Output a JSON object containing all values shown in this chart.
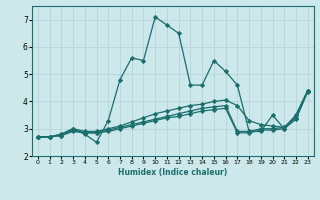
{
  "xlabel": "Humidex (Indice chaleur)",
  "background_color": "#cce8ea",
  "grid_color": "#b0d0d4",
  "line_color": "#1a6e6e",
  "xlim": [
    -0.5,
    23.5
  ],
  "ylim": [
    2.0,
    7.5
  ],
  "yticks": [
    2,
    3,
    4,
    5,
    6,
    7
  ],
  "xticks": [
    0,
    1,
    2,
    3,
    4,
    5,
    6,
    7,
    8,
    9,
    10,
    11,
    12,
    13,
    14,
    15,
    16,
    17,
    18,
    19,
    20,
    21,
    22,
    23
  ],
  "series": [
    {
      "x": [
        0,
        1,
        2,
        3,
        4,
        5,
        6,
        7,
        8,
        9,
        10,
        11,
        12,
        13,
        14,
        15,
        16,
        17,
        18,
        19,
        20,
        21,
        22,
        23
      ],
      "y": [
        2.7,
        2.7,
        2.8,
        3.0,
        2.8,
        2.5,
        3.3,
        4.8,
        5.6,
        5.5,
        7.1,
        6.8,
        6.5,
        4.6,
        4.6,
        5.5,
        5.1,
        4.6,
        2.9,
        2.9,
        3.5,
        3.0,
        3.5,
        4.4
      ]
    },
    {
      "x": [
        0,
        1,
        2,
        3,
        4,
        5,
        6,
        7,
        8,
        9,
        10,
        11,
        12,
        13,
        14,
        15,
        16,
        17,
        18,
        19,
        20,
        21,
        22,
        23
      ],
      "y": [
        2.7,
        2.7,
        2.8,
        3.0,
        2.9,
        2.9,
        3.0,
        3.1,
        3.25,
        3.4,
        3.55,
        3.65,
        3.75,
        3.85,
        3.9,
        4.0,
        4.05,
        3.85,
        3.3,
        3.15,
        3.1,
        3.05,
        3.5,
        4.4
      ]
    },
    {
      "x": [
        0,
        1,
        2,
        3,
        4,
        5,
        6,
        7,
        8,
        9,
        10,
        11,
        12,
        13,
        14,
        15,
        16,
        17,
        18,
        19,
        20,
        21,
        22,
        23
      ],
      "y": [
        2.7,
        2.7,
        2.75,
        2.95,
        2.85,
        2.85,
        2.95,
        3.05,
        3.15,
        3.25,
        3.35,
        3.45,
        3.55,
        3.65,
        3.75,
        3.8,
        3.85,
        2.9,
        2.9,
        3.0,
        3.0,
        3.05,
        3.4,
        4.4
      ]
    },
    {
      "x": [
        0,
        1,
        2,
        3,
        4,
        5,
        6,
        7,
        8,
        9,
        10,
        11,
        12,
        13,
        14,
        15,
        16,
        17,
        18,
        19,
        20,
        21,
        22,
        23
      ],
      "y": [
        2.7,
        2.7,
        2.75,
        2.9,
        2.85,
        2.85,
        2.9,
        3.0,
        3.1,
        3.2,
        3.3,
        3.4,
        3.45,
        3.55,
        3.65,
        3.7,
        3.75,
        2.85,
        2.85,
        2.95,
        2.95,
        3.0,
        3.35,
        4.35
      ]
    }
  ]
}
